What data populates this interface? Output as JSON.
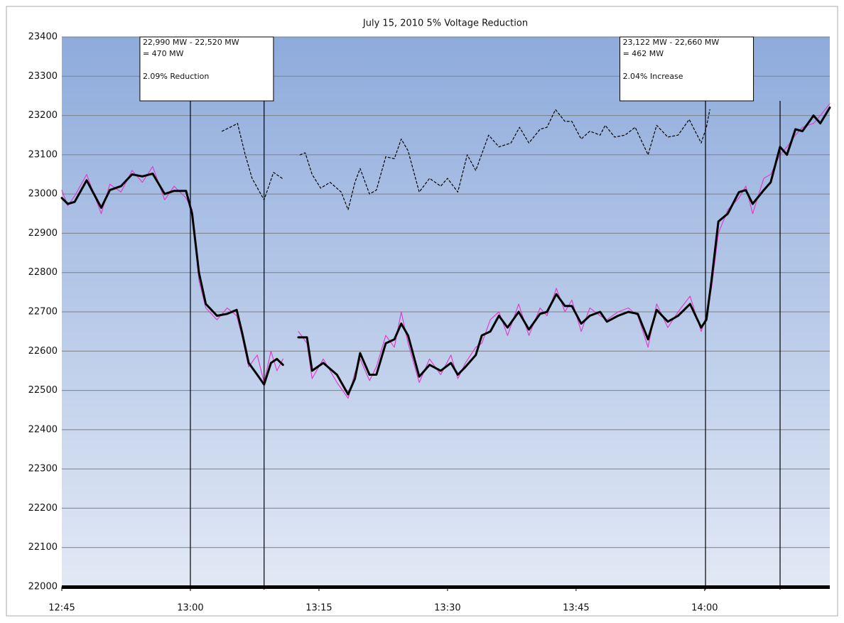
{
  "chart_data": {
    "type": "line",
    "title": "July 15, 2010 5% Voltage Reduction",
    "xlim": [
      765,
      854.6
    ],
    "xticks": [
      {
        "value": 765,
        "label": "12:45"
      },
      {
        "value": 780,
        "label": "13:00"
      },
      {
        "value": 795,
        "label": "13:15"
      },
      {
        "value": 810,
        "label": "13:30"
      },
      {
        "value": 825,
        "label": "13:45"
      },
      {
        "value": 840,
        "label": "14:00"
      }
    ],
    "ylim": [
      22000,
      23400
    ],
    "yticks": [
      22000,
      22100,
      22200,
      22300,
      22400,
      22500,
      22600,
      22700,
      22800,
      22900,
      23000,
      23100,
      23200,
      23300,
      23400
    ],
    "grid": true,
    "series": [
      {
        "color": "#e040c8",
        "style": "solid",
        "width": 1.2,
        "x": [
          765.0,
          765.7,
          766.5,
          767.9,
          769.6,
          770.6,
          771.9,
          773.2,
          774.4,
          775.6,
          777.0,
          778.1,
          779.5,
          780.2,
          781.0,
          781.8,
          783.1,
          784.3,
          785.4,
          786.0,
          786.8,
          787.8,
          788.6,
          789.4,
          790.1,
          790.8,
          791.7,
          792.6,
          793.6,
          794.2,
          795.5,
          797.1,
          798.4,
          799.2,
          799.8,
          800.9,
          801.7,
          802.8,
          803.8,
          804.6,
          805.4,
          806.7,
          807.9,
          809.2,
          810.4,
          811.2,
          812.1,
          813.3,
          814.0,
          815.0,
          816.0,
          817.0,
          818.3,
          819.5,
          820.8,
          821.6,
          822.7,
          823.7,
          824.5,
          825.6,
          826.6,
          827.8,
          828.6,
          829.9,
          831.1,
          832.2,
          833.4,
          834.4,
          835.7,
          836.9,
          838.3,
          839.6,
          840.2,
          840.8,
          841.6,
          842.7,
          844.0,
          844.8,
          845.6,
          846.9,
          847.7,
          848.8,
          849.6,
          850.6,
          851.4,
          852.7,
          853.5,
          854.6
        ],
        "values": [
          23010,
          22970,
          22995,
          23050,
          22950,
          23025,
          23005,
          23060,
          23030,
          23070,
          22985,
          23020,
          22990,
          22960,
          22780,
          22710,
          22680,
          22710,
          22690,
          22640,
          22560,
          22590,
          22520,
          22600,
          22550,
          22580,
          null,
          22650,
          22620,
          22530,
          22580,
          22520,
          22480,
          22545,
          22580,
          22525,
          22560,
          22640,
          22610,
          22700,
          22620,
          22520,
          22580,
          22540,
          22590,
          22530,
          22570,
          22610,
          22620,
          22680,
          22700,
          22640,
          22720,
          22640,
          22710,
          22690,
          22760,
          22700,
          22730,
          22650,
          22710,
          22690,
          22680,
          22700,
          22710,
          22690,
          22610,
          22720,
          22660,
          22700,
          22740,
          22650,
          22690,
          22760,
          22900,
          22960,
          22990,
          23020,
          22950,
          23040,
          23050,
          23100,
          23120,
          23150,
          23170,
          23180,
          23200,
          23230
        ]
      },
      {
        "color": "#000000",
        "style": "solid",
        "width": 3,
        "x": [
          765.0,
          765.7,
          766.5,
          767.9,
          769.6,
          770.6,
          771.9,
          773.2,
          774.4,
          775.6,
          777.0,
          778.1,
          779.5,
          780.2,
          781.0,
          781.8,
          783.1,
          784.3,
          785.4,
          786.0,
          786.8,
          787.8,
          788.6,
          789.4,
          790.1,
          790.8,
          791.7,
          792.6,
          793.6,
          794.2,
          795.5,
          797.1,
          798.4,
          799.2,
          799.8,
          800.9,
          801.7,
          802.8,
          803.8,
          804.6,
          805.4,
          806.7,
          807.9,
          809.2,
          810.4,
          811.2,
          812.1,
          813.3,
          814.0,
          815.0,
          816.0,
          817.0,
          818.3,
          819.5,
          820.8,
          821.6,
          822.7,
          823.7,
          824.5,
          825.6,
          826.6,
          827.8,
          828.6,
          829.9,
          831.1,
          832.2,
          833.4,
          834.4,
          835.7,
          836.9,
          838.3,
          839.6,
          840.2,
          840.8,
          841.6,
          842.7,
          844.0,
          844.8,
          845.6,
          846.9,
          847.7,
          848.8,
          849.6,
          850.6,
          851.4,
          852.7,
          853.5,
          854.6
        ],
        "values": [
          22990,
          22975,
          22980,
          23035,
          22965,
          23010,
          23020,
          23050,
          23045,
          23052,
          23000,
          23008,
          23008,
          22950,
          22800,
          22720,
          22690,
          22695,
          22705,
          22650,
          22570,
          22540,
          22515,
          22570,
          22580,
          22565,
          null,
          22635,
          22635,
          22550,
          22570,
          22540,
          22490,
          22530,
          22595,
          22540,
          22540,
          22620,
          22630,
          22670,
          22640,
          22535,
          22565,
          22550,
          22570,
          22540,
          22560,
          22590,
          22640,
          22650,
          22690,
          22660,
          22700,
          22655,
          22695,
          22700,
          22745,
          22715,
          22715,
          22670,
          22690,
          22700,
          22675,
          22690,
          22700,
          22695,
          22630,
          22705,
          22675,
          22690,
          22720,
          22660,
          22680,
          22780,
          22930,
          22950,
          23005,
          23010,
          22975,
          23010,
          23030,
          23120,
          23100,
          23165,
          23160,
          23200,
          23180,
          23220
        ]
      },
      {
        "color": "#000000",
        "style": "dashed",
        "width": 1.2,
        "x": [
          783.7,
          785.1,
          785.5,
          786.4,
          787.2,
          788.6,
          789.7,
          790.7,
          792.0,
          792.8,
          793.4,
          794.2,
          795.2,
          796.3,
          797.6,
          798.4,
          799.2,
          799.8,
          800.9,
          801.7,
          802.8,
          803.8,
          804.6,
          805.4,
          806.7,
          807.9,
          809.2,
          810.0,
          811.2,
          812.3,
          813.3,
          814.8,
          816.0,
          817.4,
          818.4,
          819.5,
          820.8,
          821.6,
          822.6,
          823.7,
          824.5,
          825.6,
          826.6,
          827.8,
          828.4,
          829.5,
          830.7,
          831.9,
          833.4,
          834.4,
          835.7,
          836.9,
          838.2,
          839.6,
          840.2,
          840.6
        ],
        "values": [
          23160,
          23175,
          23180,
          23100,
          23040,
          22985,
          23055,
          23040,
          null,
          23100,
          23105,
          23050,
          23015,
          23030,
          23005,
          22960,
          23030,
          23065,
          23000,
          23010,
          23095,
          23090,
          23140,
          23110,
          23005,
          23040,
          23020,
          23040,
          23005,
          23100,
          23060,
          23150,
          23120,
          23130,
          23170,
          23130,
          23165,
          23170,
          23215,
          23185,
          23185,
          23140,
          23160,
          23150,
          23175,
          23145,
          23150,
          23170,
          23100,
          23175,
          23145,
          23150,
          23190,
          23130,
          23170,
          23215
        ]
      }
    ],
    "markers": [
      780.0,
      788.6,
      840.1,
      848.8
    ],
    "annotations": [
      {
        "x": 779.5,
        "lines": [
          "22,990 MW - 22,520 MW",
          "= 470 MW",
          "",
          "2.09% Reduction"
        ]
      },
      {
        "x": 835.5,
        "lines": [
          "23,122 MW - 22,660 MW",
          "= 462 MW",
          "",
          "2.04% Increase"
        ]
      }
    ]
  }
}
